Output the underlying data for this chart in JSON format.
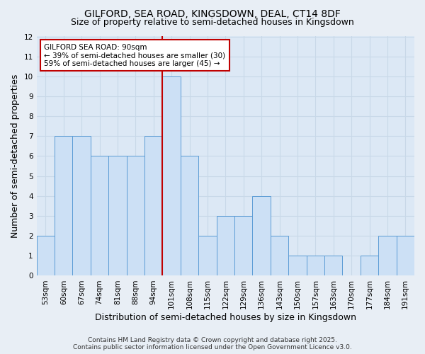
{
  "title": "GILFORD, SEA ROAD, KINGSDOWN, DEAL, CT14 8DF",
  "subtitle": "Size of property relative to semi-detached houses in Kingsdown",
  "xlabel": "Distribution of semi-detached houses by size in Kingsdown",
  "ylabel": "Number of semi-detached properties",
  "categories": [
    "53sqm",
    "60sqm",
    "67sqm",
    "74sqm",
    "81sqm",
    "88sqm",
    "94sqm",
    "101sqm",
    "108sqm",
    "115sqm",
    "122sqm",
    "129sqm",
    "136sqm",
    "143sqm",
    "150sqm",
    "157sqm",
    "163sqm",
    "170sqm",
    "177sqm",
    "184sqm",
    "191sqm"
  ],
  "values": [
    2,
    7,
    7,
    6,
    6,
    6,
    7,
    10,
    6,
    2,
    3,
    3,
    4,
    2,
    1,
    1,
    1,
    0,
    1,
    2,
    2
  ],
  "bar_color": "#cce0f5",
  "bar_edge_color": "#5b9bd5",
  "vline_color": "#c00000",
  "vline_x": 6.5,
  "ylim": [
    0,
    12
  ],
  "yticks": [
    0,
    1,
    2,
    3,
    4,
    5,
    6,
    7,
    8,
    9,
    10,
    11,
    12
  ],
  "annotation_text": "GILFORD SEA ROAD: 90sqm\n← 39% of semi-detached houses are smaller (30)\n59% of semi-detached houses are larger (45) →",
  "annotation_box_color": "#ffffff",
  "annotation_box_edge": "#c00000",
  "footer_line1": "Contains HM Land Registry data © Crown copyright and database right 2025.",
  "footer_line2": "Contains public sector information licensed under the Open Government Licence v3.0.",
  "bg_color": "#e8eef5",
  "plot_bg_color": "#dce8f5",
  "grid_color": "#c8d8e8",
  "title_fontsize": 10,
  "subtitle_fontsize": 9,
  "axis_label_fontsize": 9,
  "tick_fontsize": 7.5,
  "annotation_fontsize": 7.5,
  "footer_fontsize": 6.5
}
